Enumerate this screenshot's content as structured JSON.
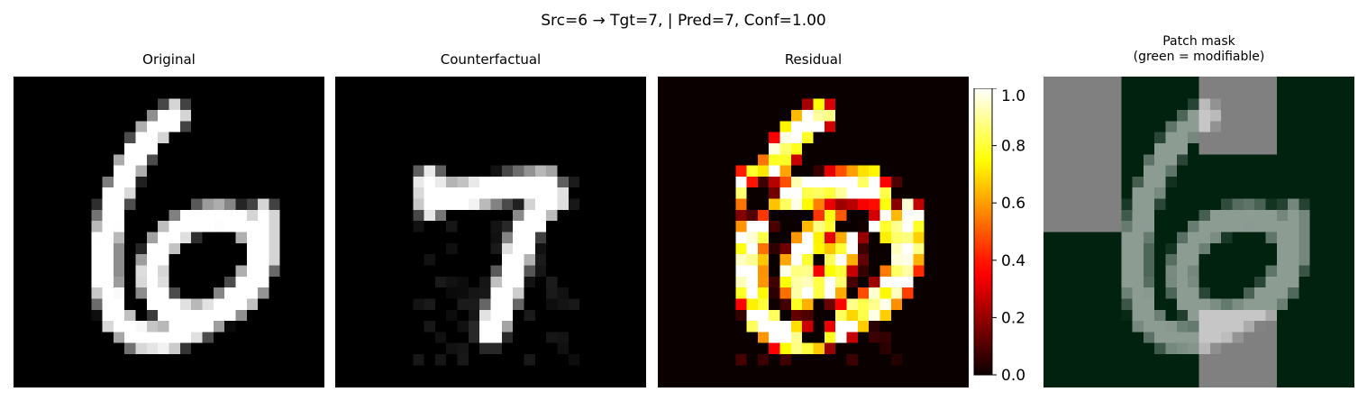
{
  "suptitle": "Src=6 → Tgt=7, | Pred=7, Conf=1.00",
  "panels": {
    "original": {
      "title": "Original"
    },
    "counterfactual": {
      "title": "Counterfactual"
    },
    "residual": {
      "title": "Residual"
    },
    "mask": {
      "title_line1": "Patch mask",
      "title_line2": "(green = modifiable)"
    }
  },
  "colorbar": {
    "colormap": "hot",
    "range": [
      0.0,
      1.0
    ],
    "ticks": [
      "0.0",
      "0.2",
      "0.4",
      "0.6",
      "0.8",
      "1.0"
    ]
  },
  "colors": {
    "modifiable": "#00220f",
    "locked": "#808080"
  },
  "image_grid": {
    "rows": 28,
    "cols": 28
  }
}
